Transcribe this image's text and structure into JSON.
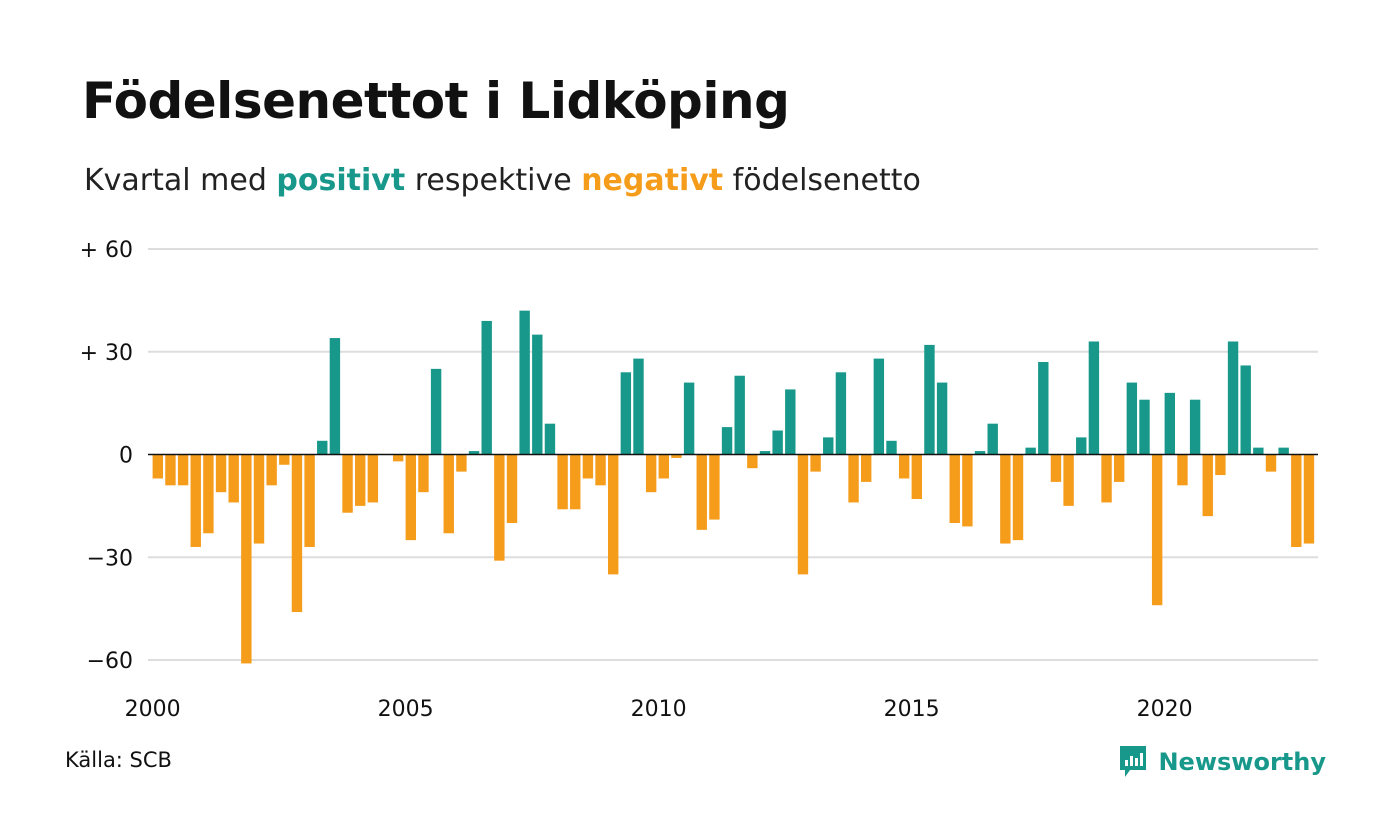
{
  "title": "Födelsenettot i Lidköping",
  "subtitle": {
    "prefix": "Kvartal med ",
    "positive_word": "positivt",
    "middle": " respektive ",
    "negative_word": "negativt",
    "suffix": " födelsenetto"
  },
  "source": "Källa: SCB",
  "brand": {
    "name": "Newsworthy",
    "icon": "newsworthy-logo-icon"
  },
  "colors": {
    "positive": "#17988a",
    "negative": "#f59c1a",
    "grid": "#dddddd",
    "zero_line": "#111111"
  },
  "chart_data": {
    "type": "bar",
    "title": "Födelsenettot i Lidköping",
    "ylim": [
      -60,
      60
    ],
    "y_ticks": [
      {
        "value": 60,
        "label": "+ 60"
      },
      {
        "value": 30,
        "label": "+ 30"
      },
      {
        "value": 0,
        "label": "0"
      },
      {
        "value": -30,
        "label": "−30"
      },
      {
        "value": -60,
        "label": "−60"
      }
    ],
    "x_ticks": [
      {
        "value": 2000,
        "label": "2000"
      },
      {
        "value": 2005,
        "label": "2005"
      },
      {
        "value": 2010,
        "label": "2010"
      },
      {
        "value": 2015,
        "label": "2015"
      },
      {
        "value": 2020,
        "label": "2020"
      }
    ],
    "x_start": 2000,
    "periods_per_year": 4,
    "grid": true,
    "values": [
      -7,
      -9,
      -9,
      -27,
      -23,
      -11,
      -14,
      -61,
      -26,
      -9,
      -3,
      -46,
      -27,
      4,
      34,
      -17,
      -15,
      -14,
      0,
      -2,
      -25,
      -11,
      25,
      -23,
      -5,
      1,
      39,
      -31,
      -20,
      42,
      35,
      9,
      -16,
      -16,
      -7,
      -9,
      -35,
      24,
      28,
      -11,
      -7,
      -1,
      21,
      -22,
      -19,
      8,
      23,
      -4,
      1,
      7,
      19,
      -35,
      -5,
      5,
      24,
      -14,
      -8,
      28,
      4,
      -7,
      -13,
      32,
      21,
      -20,
      -21,
      1,
      9,
      -26,
      -25,
      2,
      27,
      -8,
      -15,
      5,
      33,
      -14,
      -8,
      21,
      16,
      -44,
      18,
      -9,
      16,
      -18,
      -6,
      33,
      26,
      2,
      -5,
      2,
      -27,
      -26
    ]
  }
}
